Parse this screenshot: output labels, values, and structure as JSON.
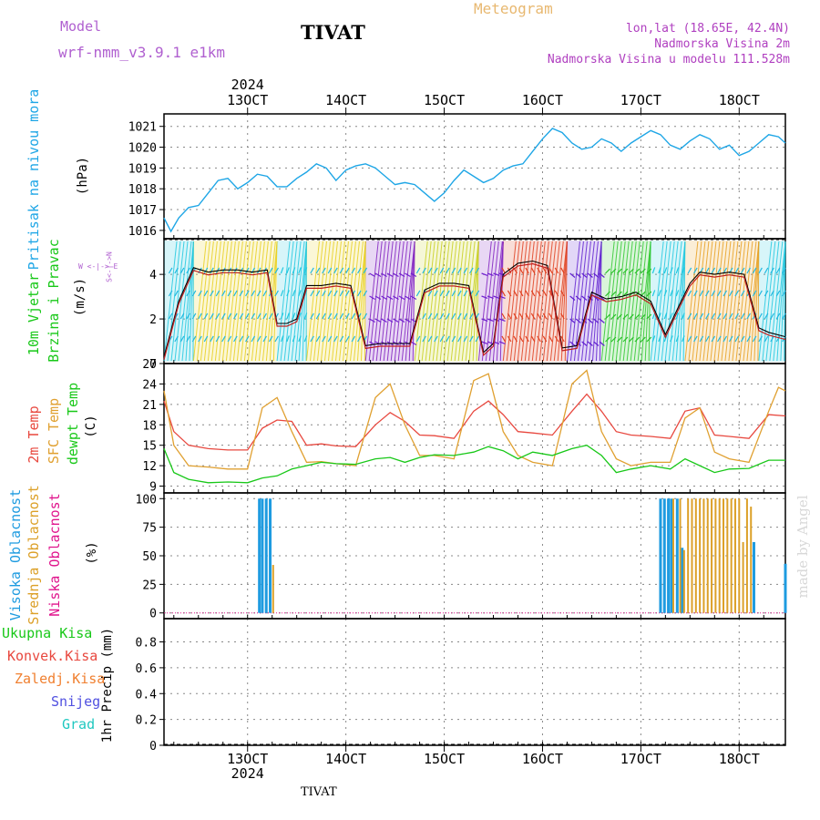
{
  "header": {
    "model_label": "Model",
    "model_name": "wrf-nmm_v3.9.1  e1km",
    "station": "TIVAT",
    "meteogram_label": "Meteogram",
    "lonlat": "lon,lat (18.65E, 42.4N)",
    "elevation": "Nadmorska Visina 2m",
    "model_elevation": "Nadmorska Visina u modelu 111.528m",
    "credit": "made by Angel"
  },
  "footer": {
    "station": "TIVAT"
  },
  "colors": {
    "pressure": "#1ea6e6",
    "temp2m": "#e8483f",
    "sfctemp": "#e0a030",
    "dewpt": "#18c818",
    "cloud_high": "#1e9be0",
    "cloud_mid": "#dca028",
    "cloud_low": "#e0148c",
    "model_label": "#b060d0",
    "meteogram": "#e8b870",
    "lonlat": "#b040c0"
  },
  "labels": {
    "pressure_title": "Pritisak na nivou mora",
    "pressure_unit": "(hPa)",
    "wind_title1": "10m Vjetar",
    "wind_title2": "Brzina i Pravac",
    "wind_unit": "(m/s)",
    "wind_compass": "W <-|-> E",
    "wind_compass_ns": "S<-|->N",
    "temp_2m": "2m Temp",
    "temp_sfc": "SFC Temp",
    "temp_dew": "dewpt Temp",
    "temp_unit": "(C)",
    "cloud_high": "Visoka Oblacnost",
    "cloud_mid": "Srednja Oblacnost",
    "cloud_low": "Niska  Oblacnost",
    "cloud_unit": "(%)",
    "precip_total": "Ukupna  Kisa",
    "precip_conv": "Konvek.Kisa",
    "precip_frz": "Zaledj.Kisa",
    "precip_snow": "Snijeg",
    "precip_grad": "Grad",
    "precip_unit": "1hr Precip (mm)"
  },
  "time_axis": {
    "year": "2024",
    "ticks": [
      "13OCT",
      "14OCT",
      "15OCT",
      "16OCT",
      "17OCT",
      "18OCT"
    ],
    "tick_days": [
      13,
      14,
      15,
      16,
      17,
      18
    ],
    "xlim": [
      12.15,
      18.47
    ]
  },
  "chart_data": [
    {
      "type": "line",
      "name": "pressure",
      "ylim": [
        1015.6,
        1021.6
      ],
      "yticks": [
        "1016",
        "1017",
        "1018",
        "1019",
        "1020",
        "1021"
      ],
      "ytick_values": [
        1016,
        1017,
        1018,
        1019,
        1020,
        1021
      ],
      "series": [
        {
          "x": [
            12.15,
            12.22,
            12.3,
            12.4,
            12.5,
            12.6,
            12.7,
            12.8,
            12.9,
            13.0,
            13.1,
            13.2,
            13.3,
            13.4,
            13.5,
            13.6,
            13.7,
            13.8,
            13.9,
            14.0,
            14.1,
            14.2,
            14.3,
            14.4,
            14.5,
            14.6,
            14.7,
            14.8,
            14.9,
            15.0,
            15.1,
            15.2,
            15.3,
            15.4,
            15.5,
            15.6,
            15.7,
            15.8,
            15.9,
            16.0,
            16.1,
            16.2,
            16.3,
            16.4,
            16.5,
            16.6,
            16.7,
            16.8,
            16.9,
            17.0,
            17.1,
            17.2,
            17.3,
            17.4,
            17.5,
            17.6,
            17.7,
            17.8,
            17.9,
            18.0,
            18.1,
            18.2,
            18.3,
            18.4,
            18.47
          ],
          "values": [
            1016.6,
            1015.95,
            1016.6,
            1017.1,
            1017.2,
            1017.8,
            1018.4,
            1018.5,
            1018.0,
            1018.3,
            1018.7,
            1018.6,
            1018.1,
            1018.1,
            1018.5,
            1018.8,
            1019.2,
            1019.0,
            1018.4,
            1018.9,
            1019.1,
            1019.2,
            1019.0,
            1018.6,
            1018.2,
            1018.3,
            1018.2,
            1017.8,
            1017.4,
            1017.8,
            1018.4,
            1018.9,
            1018.6,
            1018.3,
            1018.5,
            1018.9,
            1019.1,
            1019.2,
            1019.8,
            1020.4,
            1020.9,
            1020.7,
            1020.2,
            1019.9,
            1020.0,
            1020.4,
            1020.2,
            1019.8,
            1020.2,
            1020.5,
            1020.8,
            1020.6,
            1020.1,
            1019.9,
            1020.3,
            1020.6,
            1020.4,
            1019.9,
            1020.1,
            1019.6,
            1019.8,
            1020.2,
            1020.6,
            1020.5,
            1020.2
          ]
        }
      ]
    },
    {
      "type": "line",
      "name": "wind",
      "ylim": [
        0,
        5.6
      ],
      "yticks": [
        "0",
        "2",
        "4"
      ],
      "ytick_values": [
        0,
        2,
        4
      ],
      "series": [
        {
          "name": "speed",
          "x": [
            12.15,
            12.3,
            12.45,
            12.6,
            12.75,
            12.9,
            13.05,
            13.2,
            13.3,
            13.4,
            13.5,
            13.6,
            13.75,
            13.9,
            14.05,
            14.2,
            14.35,
            14.5,
            14.65,
            14.8,
            14.95,
            15.1,
            15.25,
            15.4,
            15.5,
            15.6,
            15.75,
            15.9,
            16.05,
            16.2,
            16.35,
            16.5,
            16.65,
            16.8,
            16.95,
            17.1,
            17.25,
            17.4,
            17.5,
            17.6,
            17.75,
            17.9,
            18.05,
            18.2,
            18.3,
            18.47
          ],
          "values": [
            0.3,
            2.8,
            4.3,
            4.1,
            4.2,
            4.2,
            4.1,
            4.2,
            1.8,
            1.8,
            2.0,
            3.5,
            3.5,
            3.6,
            3.5,
            0.8,
            0.9,
            0.9,
            0.9,
            3.3,
            3.6,
            3.6,
            3.5,
            0.5,
            0.9,
            4.0,
            4.5,
            4.6,
            4.4,
            0.7,
            0.8,
            3.2,
            2.9,
            3.0,
            3.2,
            2.8,
            1.3,
            2.7,
            3.6,
            4.1,
            4.0,
            4.1,
            4.0,
            1.6,
            1.4,
            1.2
          ]
        }
      ]
    },
    {
      "type": "line",
      "name": "temperature",
      "ylim": [
        8,
        27
      ],
      "yticks": [
        "9",
        "12",
        "15",
        "18",
        "21",
        "24",
        "27"
      ],
      "ytick_values": [
        9,
        12,
        15,
        18,
        21,
        24,
        27
      ],
      "series": [
        {
          "key": "temp2m",
          "x": [
            12.15,
            12.25,
            12.4,
            12.6,
            12.8,
            13.0,
            13.15,
            13.3,
            13.45,
            13.6,
            13.75,
            13.9,
            14.1,
            14.3,
            14.45,
            14.6,
            14.75,
            14.9,
            15.1,
            15.3,
            15.45,
            15.6,
            15.75,
            15.9,
            16.1,
            16.3,
            16.45,
            16.6,
            16.75,
            16.9,
            17.1,
            17.3,
            17.45,
            17.6,
            17.75,
            17.9,
            18.1,
            18.3,
            18.47
          ],
          "values": [
            21.5,
            17.0,
            15.0,
            14.5,
            14.3,
            14.3,
            17.5,
            18.7,
            18.5,
            15.0,
            15.2,
            14.9,
            14.8,
            18.0,
            19.8,
            18.5,
            16.5,
            16.4,
            16.0,
            20.0,
            21.5,
            19.5,
            17.0,
            16.8,
            16.5,
            20.0,
            22.5,
            20.0,
            17.0,
            16.5,
            16.3,
            16.0,
            20.0,
            20.5,
            16.5,
            16.3,
            16.0,
            19.5,
            19.3
          ]
        },
        {
          "key": "sfctemp",
          "x": [
            12.15,
            12.25,
            12.4,
            12.6,
            12.8,
            13.0,
            13.15,
            13.3,
            13.45,
            13.6,
            13.75,
            13.9,
            14.1,
            14.3,
            14.45,
            14.6,
            14.75,
            14.9,
            15.1,
            15.3,
            15.45,
            15.6,
            15.75,
            15.9,
            16.1,
            16.3,
            16.45,
            16.6,
            16.75,
            16.9,
            17.1,
            17.3,
            17.45,
            17.6,
            17.75,
            17.9,
            18.1,
            18.3,
            18.4,
            18.47
          ],
          "values": [
            23.0,
            15.0,
            12.0,
            11.8,
            11.5,
            11.5,
            20.5,
            22.0,
            17.0,
            12.5,
            12.6,
            12.3,
            12.0,
            22.0,
            24.0,
            18.0,
            13.5,
            13.5,
            13.0,
            24.5,
            25.5,
            17.0,
            13.5,
            12.5,
            12.0,
            24.0,
            26.0,
            17.0,
            13.0,
            12.0,
            12.5,
            12.5,
            19.0,
            20.5,
            14.0,
            13.0,
            12.5,
            20.0,
            23.5,
            23.0
          ]
        },
        {
          "key": "dewpt",
          "x": [
            12.15,
            12.25,
            12.4,
            12.6,
            12.8,
            13.0,
            13.15,
            13.3,
            13.45,
            13.6,
            13.75,
            13.9,
            14.1,
            14.3,
            14.45,
            14.6,
            14.75,
            14.9,
            15.1,
            15.3,
            15.45,
            15.6,
            15.75,
            15.9,
            16.1,
            16.3,
            16.45,
            16.6,
            16.75,
            16.9,
            17.1,
            17.3,
            17.45,
            17.6,
            17.75,
            17.9,
            18.1,
            18.3,
            18.47
          ],
          "values": [
            14.5,
            11.0,
            10.0,
            9.5,
            9.6,
            9.5,
            10.2,
            10.5,
            11.5,
            12.0,
            12.5,
            12.3,
            12.2,
            13.0,
            13.2,
            12.5,
            13.2,
            13.6,
            13.5,
            14.0,
            14.8,
            14.2,
            13.0,
            14.0,
            13.5,
            14.5,
            15.0,
            13.5,
            11.0,
            11.5,
            12.0,
            11.5,
            13.0,
            12.0,
            11.0,
            11.5,
            11.6,
            12.8,
            12.8
          ]
        }
      ]
    },
    {
      "type": "bar",
      "name": "cloud_cover",
      "ylim": [
        -5,
        105
      ],
      "yticks": [
        "0",
        "25",
        "50",
        "75",
        "100"
      ],
      "ytick_values": [
        0,
        25,
        50,
        75,
        100
      ],
      "series": [
        {
          "key": "cloud_high",
          "x": [
            13.12,
            13.15,
            13.19,
            13.23,
            17.2,
            17.24,
            17.28,
            17.31,
            17.37,
            17.42,
            18.15,
            18.32,
            18.47
          ],
          "values": [
            100,
            100,
            100,
            100,
            100,
            100,
            100,
            100,
            100,
            57,
            62,
            0,
            43
          ]
        },
        {
          "key": "cloud_mid",
          "x": [
            13.26,
            17.33,
            17.4,
            17.44,
            17.48,
            17.52,
            17.56,
            17.6,
            17.64,
            17.68,
            17.72,
            17.76,
            17.8,
            17.84,
            17.88,
            17.92,
            17.96,
            18.0,
            18.04,
            18.08,
            18.12
          ],
          "values": [
            42,
            100,
            100,
            55,
            100,
            100,
            100,
            100,
            100,
            100,
            100,
            100,
            100,
            100,
            100,
            100,
            100,
            100,
            62,
            100,
            93
          ]
        }
      ]
    },
    {
      "type": "bar",
      "name": "precipitation",
      "ylim": [
        0,
        0.98
      ],
      "yticks": [
        "0",
        "0.2",
        "0.4",
        "0.6",
        "0.8"
      ],
      "ytick_values": [
        0,
        0.2,
        0.4,
        0.6,
        0.8
      ],
      "series": [
        {
          "key": "total",
          "values": []
        }
      ]
    }
  ]
}
